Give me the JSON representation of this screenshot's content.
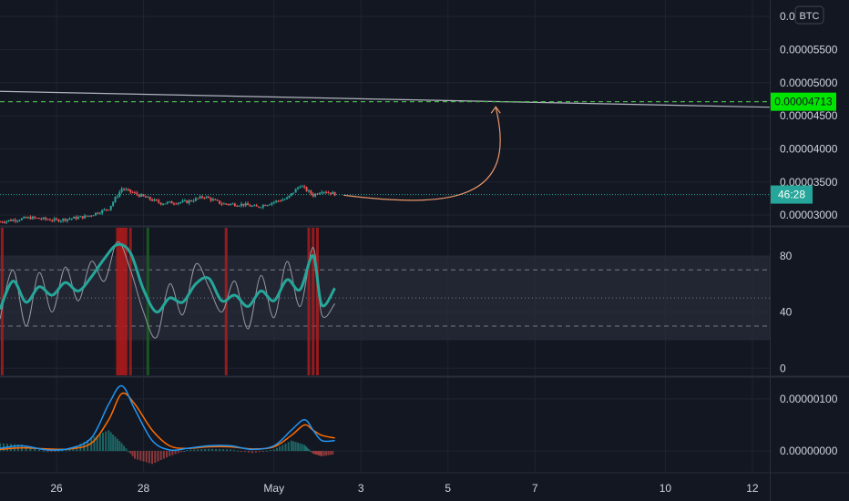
{
  "colors": {
    "background": "#131722",
    "grid": "#1f2430",
    "separator": "#2a2e39",
    "axis_text": "#d1d4dc",
    "up": "#26a69a",
    "down": "#ef5350",
    "trend_line": "#b2b5be",
    "target_line": "#4caf50",
    "target_badge": "#00e500",
    "price_badge": "#26a69a",
    "arrow": "#e9976a",
    "rsi_main": "#26a69a",
    "rsi_secondary": "#9598a1",
    "rsi_band": "#2a2e39",
    "overbought": "#b71c1c",
    "oversold": "#1b5e20",
    "macd_line": "#2196f3",
    "signal_line": "#ff6d00"
  },
  "currency_button": "BTC",
  "price_badge": "46:28",
  "target_badge": "0.00004713",
  "chart_data": [
    {
      "type": "candlestick",
      "pane": "price",
      "ylim": [
        2.85e-05,
        6.25e-05
      ],
      "y_ticks": [
        "0.0000...",
        "0.00005500",
        "0.00005000",
        "0.00004500",
        "0.00004000",
        "0.00003500",
        "0.00003000"
      ],
      "y_tick_values": [
        6e-05,
        5.5e-05,
        5e-05,
        4.5e-05,
        4e-05,
        3.5e-05,
        3e-05
      ],
      "current_price": 3.31e-05,
      "target_level": 4.713e-05,
      "x_ticks": [
        "26",
        "28",
        "May",
        "3",
        "5",
        "7",
        "10",
        "12"
      ],
      "x_tick_values": [
        26,
        28,
        31,
        33,
        35,
        37,
        40,
        42
      ],
      "xlim": [
        24.7,
        42.4
      ],
      "last_x": 32.4,
      "trend_line": {
        "x": [
          24.7,
          42.4
        ],
        "y": [
          4.87e-05,
          4.63e-05
        ]
      },
      "path_points": [
        {
          "x": 24.7,
          "y": 2.9e-05
        },
        {
          "x": 25.4,
          "y": 2.96e-05
        },
        {
          "x": 26.0,
          "y": 2.92e-05
        },
        {
          "x": 26.7,
          "y": 2.98e-05
        },
        {
          "x": 27.2,
          "y": 3.1e-05
        },
        {
          "x": 27.5,
          "y": 3.4e-05
        },
        {
          "x": 27.9,
          "y": 3.3e-05
        },
        {
          "x": 28.4,
          "y": 3.18e-05
        },
        {
          "x": 29.0,
          "y": 3.2e-05
        },
        {
          "x": 29.4,
          "y": 3.28e-05
        },
        {
          "x": 29.8,
          "y": 3.17e-05
        },
        {
          "x": 30.3,
          "y": 3.16e-05
        },
        {
          "x": 30.6,
          "y": 3.12e-05
        },
        {
          "x": 31.0,
          "y": 3.2e-05
        },
        {
          "x": 31.3,
          "y": 3.25e-05
        },
        {
          "x": 31.6,
          "y": 3.45e-05
        },
        {
          "x": 31.9,
          "y": 3.3e-05
        },
        {
          "x": 32.1,
          "y": 3.37e-05
        },
        {
          "x": 32.4,
          "y": 3.32e-05
        }
      ],
      "projection_arrow": {
        "from": [
          32.6,
          3.3e-05
        ],
        "to": [
          36.1,
          4.65e-05
        ]
      }
    },
    {
      "type": "line",
      "pane": "rsi",
      "ylim": [
        -5,
        100
      ],
      "y_ticks": [
        "80",
        "40",
        "0"
      ],
      "y_tick_values": [
        80,
        40,
        0
      ],
      "levels": [
        70,
        50,
        30
      ],
      "band": [
        20,
        80
      ],
      "series": [
        {
          "key": "rsi",
          "x": [
            24.7,
            25.0,
            25.3,
            25.6,
            25.9,
            26.2,
            26.5,
            26.8,
            27.1,
            27.4,
            27.7,
            28.0,
            28.3,
            28.6,
            28.9,
            29.2,
            29.5,
            29.8,
            30.1,
            30.4,
            30.7,
            31.0,
            31.3,
            31.6,
            31.9,
            32.1,
            32.4
          ],
          "y": [
            42,
            62,
            47,
            58,
            52,
            61,
            55,
            65,
            78,
            88,
            82,
            56,
            40,
            50,
            47,
            60,
            64,
            48,
            52,
            44,
            55,
            48,
            63,
            56,
            80,
            45,
            57
          ]
        },
        {
          "key": "rsi_fast",
          "x": [
            24.7,
            25.0,
            25.3,
            25.6,
            25.9,
            26.2,
            26.5,
            26.8,
            27.1,
            27.4,
            27.7,
            28.0,
            28.3,
            28.6,
            28.9,
            29.2,
            29.5,
            29.8,
            30.1,
            30.4,
            30.7,
            31.0,
            31.3,
            31.6,
            31.9,
            32.1,
            32.4
          ],
          "y": [
            35,
            70,
            30,
            68,
            40,
            72,
            48,
            76,
            62,
            90,
            70,
            40,
            22,
            60,
            38,
            74,
            58,
            40,
            62,
            28,
            66,
            36,
            76,
            44,
            86,
            38,
            46
          ]
        }
      ],
      "overbought_marks": [
        {
          "x": 24.75
        },
        {
          "x": 27.4
        },
        {
          "x": 27.45
        },
        {
          "x": 27.5
        },
        {
          "x": 27.55
        },
        {
          "x": 27.6
        },
        {
          "x": 27.7
        },
        {
          "x": 29.9
        },
        {
          "x": 31.8
        },
        {
          "x": 31.9
        },
        {
          "x": 32.0
        }
      ],
      "oversold_marks": [
        {
          "x": 28.1
        }
      ]
    },
    {
      "type": "line",
      "pane": "macd",
      "ylim": [
        -4e-07,
        1.4e-06
      ],
      "y_ticks": [
        "0.00000100",
        "0.00000000"
      ],
      "y_tick_values": [
        1e-06,
        0.0
      ],
      "series": [
        {
          "key": "macd",
          "x": [
            24.7,
            25.2,
            25.8,
            26.3,
            26.8,
            27.2,
            27.5,
            27.8,
            28.2,
            28.6,
            29.0,
            29.5,
            30.0,
            30.5,
            31.0,
            31.4,
            31.7,
            31.9,
            32.1,
            32.4
          ],
          "y": [
            5e-08,
            1e-07,
            2e-08,
            5e-08,
            2.5e-07,
            9e-07,
            1.25e-06,
            8e-07,
            2e-07,
            2e-08,
            5e-08,
            1e-07,
            1e-07,
            3e-08,
            1e-07,
            4e-07,
            6e-07,
            4e-07,
            2e-07,
            2e-07
          ]
        },
        {
          "key": "signal",
          "x": [
            24.7,
            25.2,
            25.8,
            26.3,
            26.8,
            27.2,
            27.5,
            27.8,
            28.2,
            28.6,
            29.0,
            29.5,
            30.0,
            30.5,
            31.0,
            31.4,
            31.7,
            31.9,
            32.1,
            32.4
          ],
          "y": [
            3e-08,
            6e-08,
            4e-08,
            4e-08,
            1.5e-07,
            6e-07,
            1.1e-06,
            9e-07,
            4e-07,
            1e-07,
            5e-08,
            8e-08,
            8e-08,
            4e-08,
            8e-08,
            3e-07,
            5e-07,
            4e-07,
            3e-07,
            2.5e-07
          ]
        }
      ],
      "histogram": {
        "x": [
          24.7,
          25.2,
          25.8,
          26.3,
          26.8,
          27.2,
          27.5,
          27.8,
          28.2,
          28.6,
          29.0,
          29.5,
          30.0,
          30.5,
          31.0,
          31.4,
          31.7,
          31.9,
          32.1,
          32.4
        ],
        "y": [
          1.5e-07,
          1.2e-07,
          -2e-08,
          3e-08,
          2.5e-07,
          4e-07,
          1.5e-07,
          -1.5e-07,
          -2.5e-07,
          -1e-07,
          2e-08,
          4e-08,
          3e-08,
          -4e-08,
          3e-08,
          2e-07,
          1.2e-07,
          -5e-08,
          -1e-07,
          -6e-08
        ]
      }
    }
  ]
}
